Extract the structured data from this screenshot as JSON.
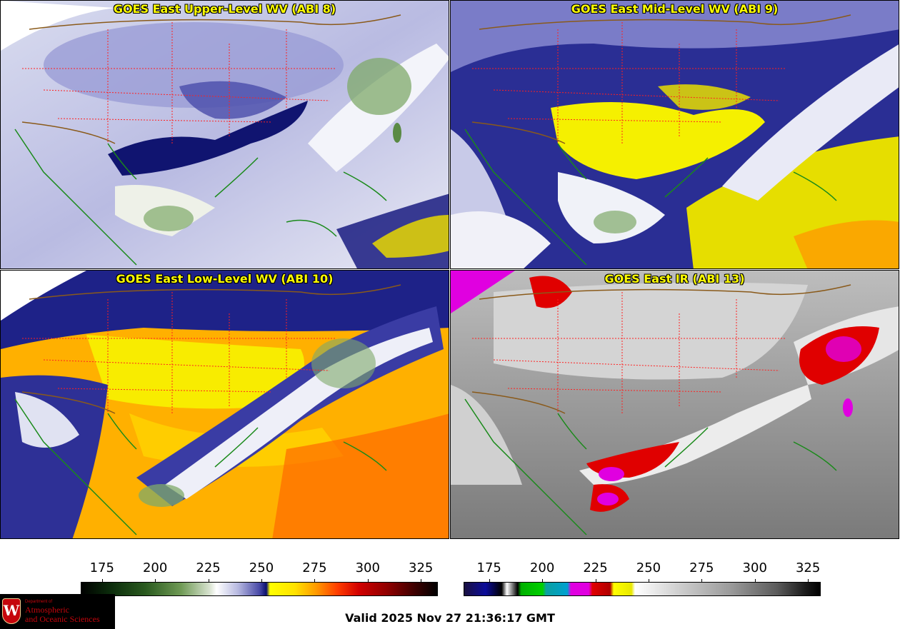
{
  "panels": [
    {
      "title": "GOES East Upper-Level WV (ABI 8)",
      "band": "ABI 8",
      "colormap": "wv"
    },
    {
      "title": "GOES East Mid-Level WV (ABI 9)",
      "band": "ABI 9",
      "colormap": "wv"
    },
    {
      "title": "GOES East Low-Level WV (ABI 10)",
      "band": "ABI 10",
      "colormap": "wv"
    },
    {
      "title": "GOES East IR (ABI 13)",
      "band": "ABI 13",
      "colormap": "ir"
    }
  ],
  "colorbars": {
    "wv": {
      "ticks": [
        "175",
        "200",
        "225",
        "250",
        "275",
        "300",
        "325"
      ],
      "range": [
        165,
        333
      ]
    },
    "ir": {
      "ticks": [
        "175",
        "200",
        "225",
        "250",
        "275",
        "300",
        "325"
      ],
      "range": [
        163,
        331
      ]
    }
  },
  "valid_time": "Valid 2025 Nov 27 21:36:17 GMT",
  "logo": {
    "department": "Department of",
    "line1": "Atmospheric",
    "line2": "and Oceanic Sciences",
    "crest": "W"
  },
  "colors": {
    "title_text": "#ffff00",
    "coastline": "#1a8a1a",
    "state_borders": "#ff2020",
    "country_borders": "#8a5a1a"
  }
}
